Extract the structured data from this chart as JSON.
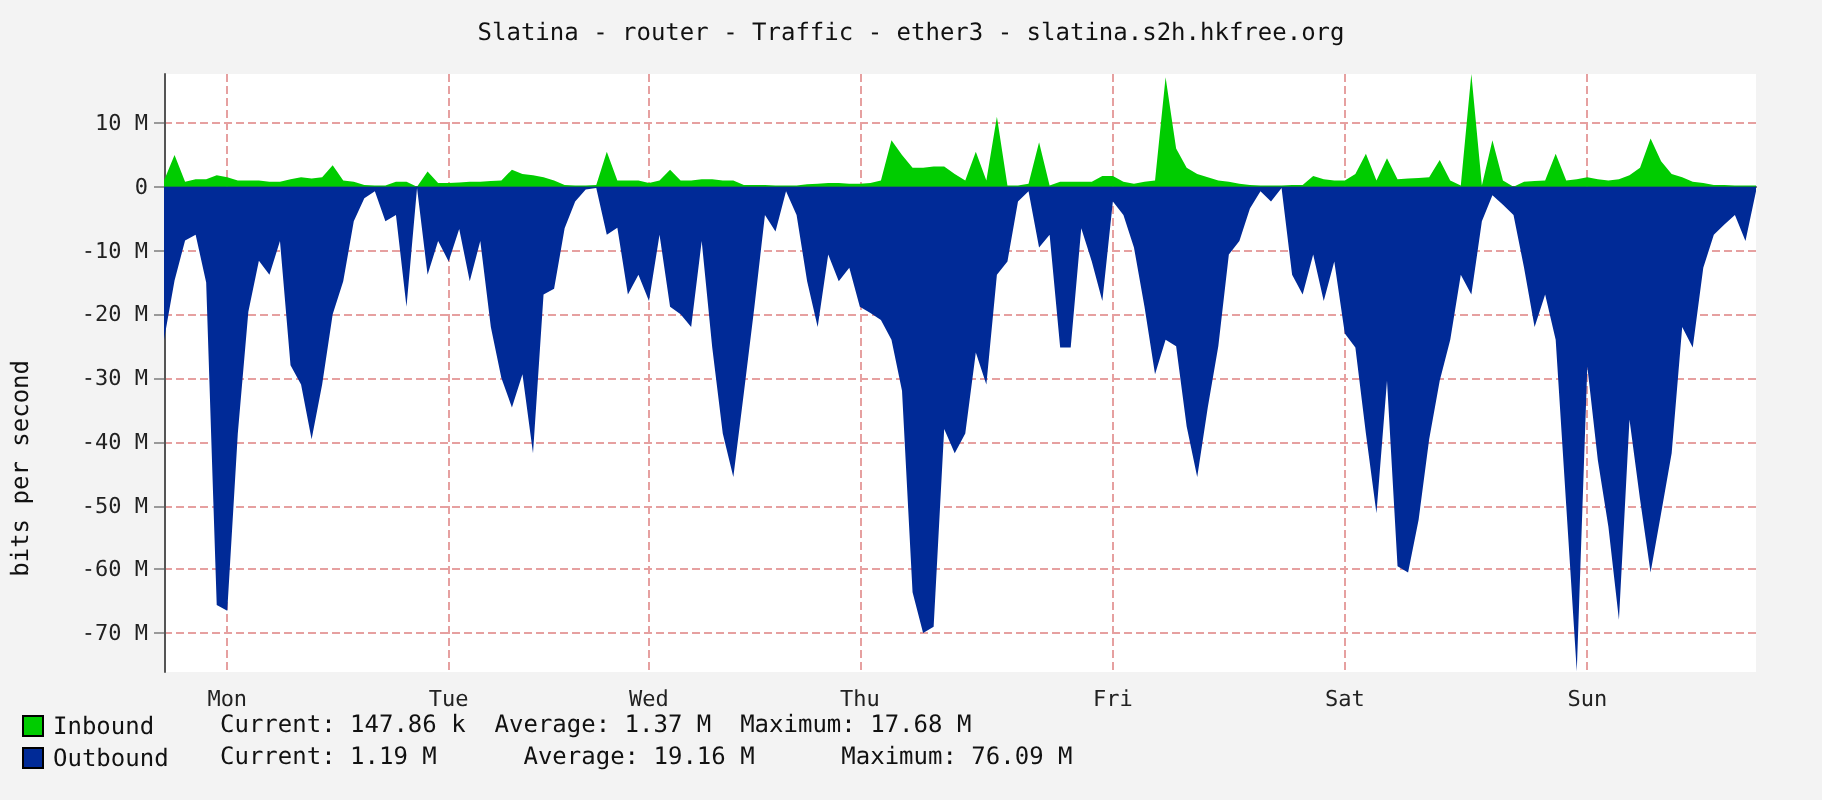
{
  "chart_data": {
    "type": "area",
    "title": "Slatina - router - Traffic - ether3 - slatina.s2h.hkfree.org",
    "ylabel": "bits per second",
    "categories": [
      null,
      null,
      null,
      null,
      null,
      null,
      "Mon",
      null,
      null,
      null,
      null,
      null,
      null,
      null,
      null,
      null,
      null,
      null,
      null,
      null,
      null,
      null,
      null,
      null,
      null,
      null,
      null,
      "Tue",
      null,
      null,
      null,
      null,
      null,
      null,
      null,
      null,
      null,
      null,
      null,
      null,
      null,
      null,
      null,
      null,
      null,
      null,
      "Wed",
      null,
      null,
      null,
      null,
      null,
      null,
      null,
      null,
      null,
      null,
      null,
      null,
      null,
      null,
      null,
      null,
      null,
      null,
      null,
      "Thu",
      null,
      null,
      null,
      null,
      null,
      null,
      null,
      null,
      null,
      null,
      null,
      null,
      null,
      null,
      null,
      null,
      null,
      null,
      null,
      null,
      null,
      null,
      null,
      "Fri",
      null,
      null,
      null,
      null,
      null,
      null,
      null,
      null,
      null,
      null,
      null,
      null,
      null,
      null,
      null,
      null,
      null,
      null,
      null,
      null,
      null,
      "Sat",
      null,
      null,
      null,
      null,
      null,
      null,
      null,
      null,
      null,
      null,
      null,
      null,
      null,
      null,
      null,
      null,
      null,
      null,
      null,
      null,
      null,
      null,
      "Sun",
      null,
      null,
      null,
      null,
      null,
      null,
      null,
      null,
      null,
      null,
      null,
      null,
      null,
      null,
      null,
      null
    ],
    "ylim": [
      -76.1,
      17.7
    ],
    "yticks": [
      {
        "value": -70,
        "label": "-70 M"
      },
      {
        "value": -60,
        "label": "-60 M"
      },
      {
        "value": -50,
        "label": "-50 M"
      },
      {
        "value": -40,
        "label": "-40 M"
      },
      {
        "value": -30,
        "label": "-30 M"
      },
      {
        "value": -20,
        "label": "-20 M"
      },
      {
        "value": -10,
        "label": "-10 M"
      },
      {
        "value": 0,
        "label": "0"
      },
      {
        "value": 10,
        "label": "10 M"
      }
    ],
    "grid": true,
    "legend": "bottom left",
    "series": [
      {
        "name": "Inbound",
        "color": "#00cc00",
        "values": [
          1,
          5,
          0.8,
          1.2,
          1.2,
          1.8,
          1.5,
          1,
          1,
          1,
          0.8,
          0.8,
          1.2,
          1.5,
          1.3,
          1.5,
          3.4,
          1,
          0.8,
          0.3,
          0.2,
          0.2,
          0.8,
          0.8,
          0,
          2.4,
          0.6,
          0.6,
          0.7,
          0.8,
          0.8,
          0.9,
          1,
          2.7,
          2,
          1.8,
          1.5,
          1,
          0.3,
          0.2,
          0.2,
          0.3,
          5.5,
          1,
          1,
          1,
          0.6,
          1,
          2.7,
          1,
          1,
          1.2,
          1.2,
          1,
          1,
          0.3,
          0.3,
          0.3,
          0.2,
          0.2,
          0.2,
          0.4,
          0.5,
          0.6,
          0.6,
          0.5,
          0.5,
          0.6,
          1,
          7.3,
          5,
          3,
          3,
          3.2,
          3.2,
          2,
          1,
          5.5,
          1,
          11,
          0.2,
          0.2,
          0.5,
          7,
          0.2,
          0.8,
          0.8,
          0.8,
          0.8,
          1.7,
          1.7,
          0.8,
          0.5,
          0.8,
          1,
          17.2,
          6,
          3,
          2,
          1.5,
          1,
          0.8,
          0.5,
          0.3,
          0.2,
          0.2,
          0.2,
          0.3,
          0.3,
          1.7,
          1.2,
          1,
          1,
          2,
          5.2,
          1,
          4.5,
          1.2,
          1.3,
          1.4,
          1.5,
          4.2,
          1,
          0.2,
          17.7,
          0.2,
          7.3,
          1,
          0,
          0.8,
          0.9,
          1,
          5.2,
          1,
          1.2,
          1.5,
          1.2,
          1,
          1.2,
          1.8,
          3,
          7.6,
          4,
          2,
          1.5,
          0.8,
          0.6,
          0.3,
          0.3,
          0.2,
          0.2,
          0.2
        ]
      },
      {
        "name": "Outbound",
        "color": "#002a97",
        "values": [
          -24,
          -14.7,
          -8.4,
          -7.5,
          -15,
          -65.6,
          -66.5,
          -38.7,
          -19.6,
          -11.6,
          -13.8,
          -8.5,
          -28,
          -31,
          -39.6,
          -31,
          -20,
          -14.8,
          -5.4,
          -1.8,
          -0.7,
          -5.4,
          -4.4,
          -18.8,
          -0.2,
          -13.8,
          -8.5,
          -11.7,
          -6.6,
          -14.8,
          -8.5,
          -22,
          -30,
          -34.6,
          -29.4,
          -41.8,
          -16.9,
          -16,
          -6.5,
          -2.3,
          -0.4,
          -0.2,
          -7.5,
          -6.4,
          -16.9,
          -13.8,
          -17.9,
          -7.5,
          -18.8,
          -20,
          -22,
          -8.5,
          -25.2,
          -38.7,
          -45.5,
          -32.3,
          -18.8,
          -4.4,
          -7,
          -0.7,
          -4.4,
          -14.8,
          -22,
          -10.6,
          -14.8,
          -12.7,
          -18.8,
          -19.8,
          -20.9,
          -24,
          -32,
          -63.6,
          -70,
          -69,
          -38,
          -41.8,
          -38.7,
          -26,
          -31,
          -13.8,
          -11.7,
          -2.3,
          -0.7,
          -9.5,
          -7.5,
          -25.2,
          -25.2,
          -6.5,
          -11.7,
          -17.9,
          -2.3,
          -4.4,
          -9.5,
          -18.8,
          -29.4,
          -24,
          -25,
          -37.6,
          -45.5,
          -34.6,
          -25,
          -10.6,
          -8.5,
          -3.4,
          -0.7,
          -2.3,
          -0.2,
          -13.8,
          -16.9,
          -10.6,
          -17.9,
          -11.7,
          -23,
          -25.2,
          -38.7,
          -51.2,
          -30.4,
          -59.5,
          -60.5,
          -52.2,
          -39.6,
          -30.4,
          -24,
          -13.8,
          -16.9,
          -5.4,
          -1.3,
          -2.8,
          -4.4,
          -12.7,
          -22,
          -16.9,
          -24,
          -50,
          -76,
          -28.2,
          -42.9,
          -53.3,
          -67.9,
          -36.5,
          -49,
          -60.5,
          -51.2,
          -41.8,
          -22,
          -25.2,
          -12.7,
          -7.5,
          -5.9,
          -4.4,
          -8.5,
          -0.7
        ]
      }
    ],
    "annotations": [
      "Current: 147.86 k  Average: 1.37 M  Maximum: 17.68 M",
      "Current: 1.19 M      Average: 19.16 M      Maximum: 76.09 M"
    ]
  }
}
